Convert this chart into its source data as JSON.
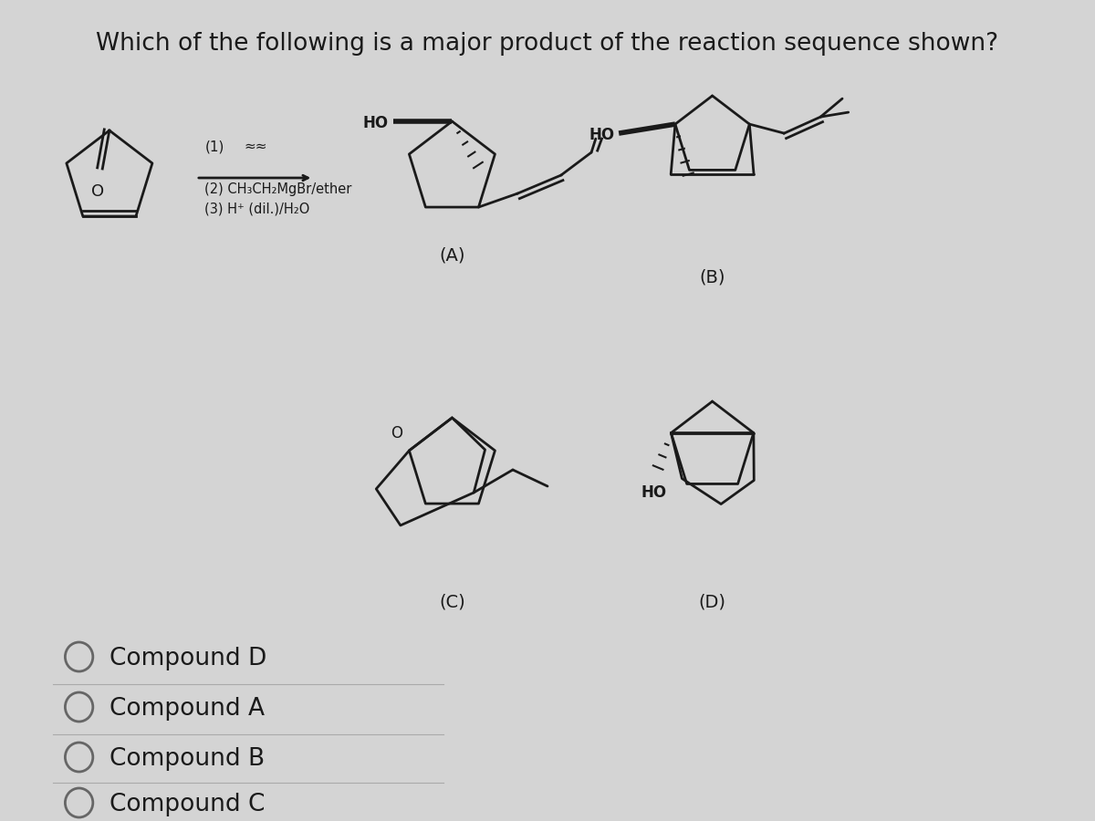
{
  "title": "Which of the following is a major product of the reaction sequence shown?",
  "background_color": "#d4d4d4",
  "text_color": "#1a1a1a",
  "title_fontsize": 19,
  "rc1": "(1)",
  "rc2": "(2) CH₃CH₂MgBr/ether",
  "rc3": "(3) H⁺ (dil.)/H₂O",
  "label_A": "(A)",
  "label_B": "(B)",
  "label_C": "(C)",
  "label_D": "(D)",
  "answer_choices": [
    "Compound D",
    "Compound A",
    "Compound B",
    "Compound C"
  ]
}
